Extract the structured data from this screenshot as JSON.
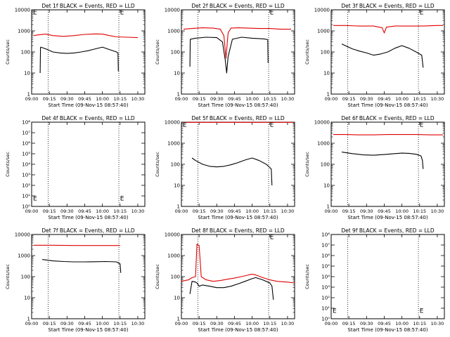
{
  "x_ticks": [
    "09:00",
    "09:15",
    "09:30",
    "09:45",
    "10:00",
    "10:15",
    "10:30"
  ],
  "x_label": "Start Time (09-Nov-15 08:57:40)",
  "y_label": "Counts/sec",
  "colors": {
    "events": "#000000",
    "lld": "#e00000",
    "axes": "#000000",
    "background": "#ffffff"
  },
  "chart_data": [
    {
      "type": "line",
      "title": "Det 1f BLACK = Events, RED = LLD",
      "scale": "log",
      "ylim": [
        1,
        10000
      ],
      "xlim_hours": [
        9.0,
        10.6
      ],
      "y_ticks": [
        "1",
        "10",
        "100",
        "1000",
        "10000"
      ],
      "markers": [
        9.233,
        10.233
      ],
      "e_labels": [
        {
          "x": 9.02,
          "y": 9000,
          "text": "E"
        },
        {
          "x": 10.25,
          "y": 9000,
          "text": "E"
        }
      ],
      "series": [
        {
          "name": "LLD",
          "color": "red",
          "x": [
            9.03,
            9.1,
            9.2,
            9.3,
            9.45,
            9.6,
            9.75,
            9.9,
            10.0,
            10.1,
            10.2,
            10.35,
            10.5
          ],
          "y": [
            600,
            650,
            700,
            600,
            550,
            600,
            680,
            720,
            700,
            600,
            520,
            500,
            480
          ]
        },
        {
          "name": "Events",
          "color": "black",
          "x": [
            9.12,
            9.125,
            9.13,
            9.2,
            9.3,
            9.4,
            9.5,
            9.6,
            9.7,
            9.8,
            9.9,
            10.0,
            10.1,
            10.2,
            10.22,
            10.225
          ],
          "y": [
            10,
            160,
            170,
            140,
            100,
            90,
            85,
            90,
            100,
            115,
            140,
            170,
            130,
            100,
            90,
            12
          ]
        }
      ]
    },
    {
      "type": "line",
      "title": "Det 2f BLACK = Events, RED = LLD",
      "scale": "log",
      "ylim": [
        1,
        10000
      ],
      "xlim_hours": [
        9.0,
        10.6
      ],
      "y_ticks": [
        "1",
        "10",
        "100",
        "1000",
        "10000"
      ],
      "markers": [
        9.233,
        10.233
      ],
      "e_labels": [
        {
          "x": 10.25,
          "y": 9000,
          "text": "E"
        }
      ],
      "series": [
        {
          "name": "LLD",
          "color": "red",
          "x": [
            9.03,
            9.15,
            9.3,
            9.45,
            9.55,
            9.6,
            9.63,
            9.66,
            9.7,
            9.8,
            9.95,
            10.1,
            10.25,
            10.4,
            10.55
          ],
          "y": [
            1200,
            1300,
            1400,
            1350,
            1200,
            600,
            50,
            800,
            1350,
            1400,
            1350,
            1300,
            1300,
            1200,
            1200
          ]
        },
        {
          "name": "Events",
          "color": "black",
          "x": [
            9.12,
            9.125,
            9.2,
            9.35,
            9.5,
            9.58,
            9.62,
            9.64,
            9.66,
            9.72,
            9.85,
            10.0,
            10.15,
            10.2,
            10.22,
            10.225
          ],
          "y": [
            20,
            400,
            450,
            500,
            480,
            300,
            40,
            10,
            60,
            400,
            500,
            450,
            420,
            400,
            380,
            30
          ]
        }
      ]
    },
    {
      "type": "line",
      "title": "Det 3f BLACK = Events, RED = LLD",
      "scale": "log",
      "ylim": [
        1,
        10000
      ],
      "xlim_hours": [
        9.0,
        10.6
      ],
      "y_ticks": [
        "1",
        "10",
        "100",
        "1000",
        "10000"
      ],
      "markers": [
        9.233,
        10.233
      ],
      "e_labels": [
        {
          "x": 10.25,
          "y": 9000,
          "text": "E"
        }
      ],
      "series": [
        {
          "name": "LLD",
          "color": "red",
          "x": [
            9.03,
            9.2,
            9.4,
            9.6,
            9.72,
            9.75,
            9.78,
            9.9,
            10.1,
            10.3,
            10.5,
            10.58
          ],
          "y": [
            1800,
            1800,
            1700,
            1700,
            1400,
            800,
            1500,
            1700,
            1700,
            1700,
            1800,
            1800
          ]
        },
        {
          "name": "Events",
          "color": "black",
          "x": [
            9.15,
            9.2,
            9.3,
            9.4,
            9.5,
            9.6,
            9.7,
            9.8,
            9.9,
            10.0,
            10.1,
            10.2,
            10.28,
            10.3
          ],
          "y": [
            240,
            200,
            140,
            110,
            90,
            70,
            80,
            100,
            150,
            200,
            150,
            100,
            70,
            18
          ]
        }
      ]
    },
    {
      "type": "line",
      "title": "Det 4f BLACK = Events, RED = LLD",
      "scale": "log",
      "ylim": [
        1,
        100000000
      ],
      "xlim_hours": [
        9.0,
        10.6
      ],
      "y_ticks": [
        "10⁰",
        "10¹",
        "10²",
        "10³",
        "10⁴",
        "10⁵",
        "10⁶",
        "10⁷",
        "10⁸"
      ],
      "markers": [
        9.233,
        10.233
      ],
      "e_labels": [
        {
          "x": 9.02,
          "y": 8,
          "text": "E"
        },
        {
          "x": 10.25,
          "y": 8,
          "text": "E"
        }
      ],
      "series": []
    },
    {
      "type": "line",
      "title": "Det 5f BLACK = Events, RED = LLD",
      "scale": "log",
      "ylim": [
        1,
        10000
      ],
      "xlim_hours": [
        9.0,
        10.6
      ],
      "y_ticks": [
        "1",
        "10",
        "100",
        "1000",
        "10000"
      ],
      "markers": [
        9.233,
        10.233
      ],
      "e_labels": [
        {
          "x": 9.02,
          "y": 9000,
          "text": "E"
        },
        {
          "x": 10.25,
          "y": 9000,
          "text": "E"
        }
      ],
      "series": [
        {
          "name": "LLD",
          "color": "red",
          "x": [
            9.03,
            9.3,
            9.6,
            9.9,
            10.2,
            10.5,
            10.58
          ],
          "y": [
            9800,
            9800,
            9800,
            9800,
            9800,
            9800,
            9800
          ]
        },
        {
          "name": "Events",
          "color": "black",
          "x": [
            9.15,
            9.2,
            9.3,
            9.4,
            9.5,
            9.6,
            9.7,
            9.8,
            9.9,
            10.0,
            10.1,
            10.2,
            10.25,
            10.27,
            10.28
          ],
          "y": [
            200,
            150,
            100,
            80,
            75,
            80,
            95,
            120,
            160,
            200,
            150,
            100,
            70,
            60,
            10
          ]
        }
      ]
    },
    {
      "type": "line",
      "title": "Det 6f BLACK = Events, RED = LLD",
      "scale": "log",
      "ylim": [
        1,
        10000
      ],
      "xlim_hours": [
        9.0,
        10.6
      ],
      "y_ticks": [
        "1",
        "10",
        "100",
        "1000",
        "10000"
      ],
      "markers": [
        9.233,
        10.233
      ],
      "e_labels": [
        {
          "x": 10.25,
          "y": 9000,
          "text": "E"
        }
      ],
      "series": [
        {
          "name": "LLD",
          "color": "red",
          "x": [
            9.03,
            9.2,
            9.4,
            9.6,
            9.8,
            10.0,
            10.2,
            10.4,
            10.58
          ],
          "y": [
            2600,
            2600,
            2500,
            2500,
            2600,
            2600,
            2600,
            2500,
            2500
          ]
        },
        {
          "name": "Events",
          "color": "black",
          "x": [
            9.15,
            9.3,
            9.45,
            9.6,
            9.75,
            9.9,
            10.0,
            10.1,
            10.2,
            10.27,
            10.29,
            10.3
          ],
          "y": [
            380,
            320,
            280,
            270,
            290,
            320,
            340,
            330,
            300,
            250,
            150,
            60
          ]
        }
      ]
    },
    {
      "type": "line",
      "title": "Det 7f BLACK = Events, RED = LLD",
      "scale": "log",
      "ylim": [
        1,
        10000
      ],
      "xlim_hours": [
        9.0,
        10.6
      ],
      "y_ticks": [
        "1",
        "10",
        "100",
        "1000",
        "10000"
      ],
      "markers": [
        9.233,
        10.233
      ],
      "e_labels": [],
      "series": [
        {
          "name": "LLD",
          "color": "red",
          "x": [
            9.03,
            9.3,
            9.6,
            9.9,
            10.2,
            10.25
          ],
          "y": [
            3100,
            3100,
            3000,
            3000,
            3000,
            3000
          ]
        },
        {
          "name": "Events",
          "color": "black",
          "x": [
            9.15,
            9.3,
            9.45,
            9.6,
            9.75,
            9.9,
            10.05,
            10.2,
            10.25,
            10.26
          ],
          "y": [
            650,
            560,
            520,
            500,
            500,
            510,
            520,
            500,
            400,
            150
          ]
        }
      ]
    },
    {
      "type": "line",
      "title": "Det 8f BLACK = Events, RED = LLD",
      "scale": "log",
      "ylim": [
        1,
        10000
      ],
      "xlim_hours": [
        9.0,
        10.6
      ],
      "y_ticks": [
        "1",
        "10",
        "100",
        "1000",
        "10000"
      ],
      "markers": [
        9.233,
        10.233
      ],
      "e_labels": [
        {
          "x": 10.25,
          "y": 9000,
          "text": "E"
        }
      ],
      "series": [
        {
          "name": "LLD",
          "color": "red",
          "x": [
            9.0,
            9.1,
            9.15,
            9.2,
            9.22,
            9.25,
            9.28,
            9.3,
            9.35,
            9.45,
            9.55,
            9.65,
            9.75,
            9.85,
            9.95,
            10.0,
            10.05,
            10.15,
            10.25,
            10.35,
            10.5,
            10.6
          ],
          "y": [
            60,
            70,
            90,
            100,
            3500,
            3000,
            100,
            90,
            70,
            60,
            65,
            75,
            85,
            100,
            120,
            130,
            120,
            90,
            70,
            60,
            55,
            50
          ]
        },
        {
          "name": "Events",
          "color": "black",
          "x": [
            9.12,
            9.15,
            9.2,
            9.22,
            9.25,
            9.3,
            9.4,
            9.5,
            9.6,
            9.7,
            9.8,
            9.9,
            10.0,
            10.05,
            10.15,
            10.25,
            10.28,
            10.3
          ],
          "y": [
            15,
            60,
            55,
            50,
            35,
            40,
            35,
            30,
            30,
            35,
            45,
            60,
            80,
            90,
            70,
            50,
            35,
            8
          ]
        }
      ]
    },
    {
      "type": "line",
      "title": "Det 9f BLACK = Events, RED = LLD",
      "scale": "log",
      "ylim": [
        1,
        100000000
      ],
      "xlim_hours": [
        9.0,
        10.6
      ],
      "y_ticks": [
        "10⁰",
        "10¹",
        "10²",
        "10³",
        "10⁴",
        "10⁵",
        "10⁶",
        "10⁷",
        "10⁸"
      ],
      "markers": [
        9.233,
        10.233
      ],
      "e_labels": [
        {
          "x": 9.02,
          "y": 8,
          "text": "E"
        },
        {
          "x": 10.25,
          "y": 8,
          "text": "E"
        }
      ],
      "series": []
    }
  ]
}
